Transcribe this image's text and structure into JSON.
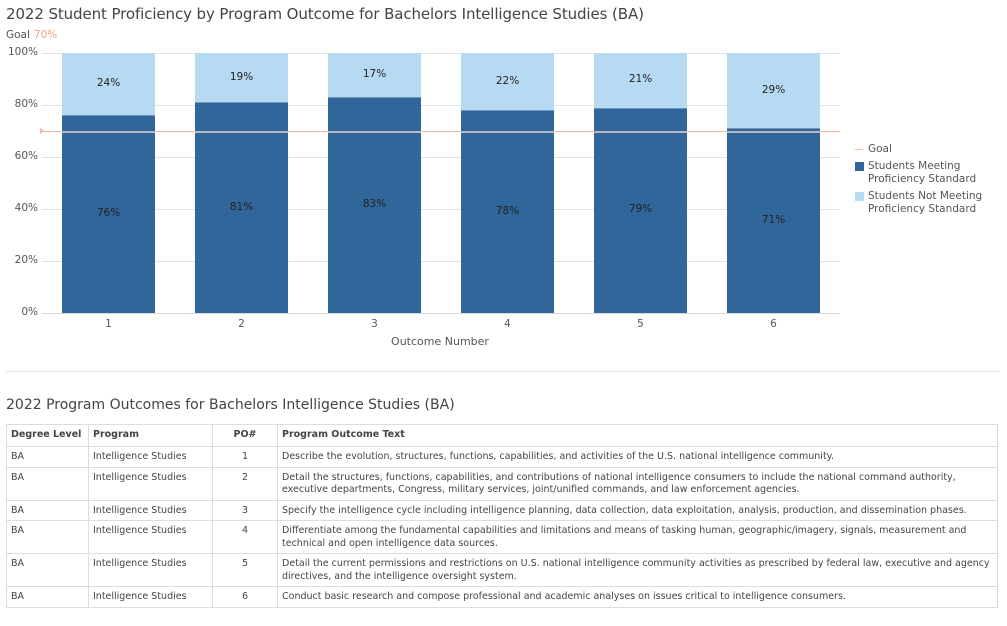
{
  "chart": {
    "title": "2022 Student Proficiency by Program Outcome for Bachelors Intelligence Studies (BA)",
    "goal_label": "Goal",
    "goal_value_label": "70%",
    "y_ticks": [
      "100%",
      "80%",
      "60%",
      "40%",
      "20%",
      "0%"
    ],
    "x_axis_label": "Outcome Number",
    "legend": {
      "goal": "Goal",
      "meeting": "Students Meeting Proficiency Standard",
      "not_meeting": "Students Not Meeting Proficiency Standard"
    },
    "colors": {
      "meeting": "#306699",
      "not_meeting": "#b7daf3",
      "goal": "#f4b7a3"
    }
  },
  "chart_data": {
    "type": "bar",
    "stacked": true,
    "title": "2022 Student Proficiency by Program Outcome for Bachelors Intelligence Studies (BA)",
    "xlabel": "Outcome Number",
    "ylabel": "",
    "ylim": [
      0,
      100
    ],
    "y_format": "percent",
    "categories": [
      "1",
      "2",
      "3",
      "4",
      "5",
      "6"
    ],
    "series": [
      {
        "name": "Students Meeting Proficiency Standard",
        "color": "#306699",
        "values": [
          76,
          81,
          83,
          78,
          79,
          71
        ],
        "labels": [
          "76%",
          "81%",
          "83%",
          "78%",
          "79%",
          "71%"
        ]
      },
      {
        "name": "Students Not Meeting Proficiency Standard",
        "color": "#b7daf3",
        "values": [
          24,
          19,
          17,
          22,
          21,
          29
        ],
        "labels": [
          "24%",
          "19%",
          "17%",
          "22%",
          "21%",
          "29%"
        ]
      }
    ],
    "reference_lines": [
      {
        "name": "Goal",
        "value": 70,
        "color": "#f4b7a3"
      }
    ],
    "grid": true,
    "legend_position": "right"
  },
  "table": {
    "title": "2022 Program Outcomes for Bachelors Intelligence Studies (BA)",
    "headers": [
      "Degree Level",
      "Program",
      "PO#",
      "Program Outcome Text"
    ],
    "rows": [
      [
        "BA",
        "Intelligence Studies",
        "1",
        "Describe the evolution, structures, functions, capabilities, and activities of the U.S. national intelligence community."
      ],
      [
        "BA",
        "Intelligence Studies",
        "2",
        "Detail the structures, functions, capabilities, and contributions of national intelligence consumers to include the national command authority, executive departments, Congress, military services, joint/unified commands, and law enforcement agencies."
      ],
      [
        "BA",
        "Intelligence Studies",
        "3",
        "Specify the intelligence cycle including intelligence planning, data collection, data exploitation, analysis, production, and dissemination phases."
      ],
      [
        "BA",
        "Intelligence Studies",
        "4",
        "Differentiate among the fundamental capabilities and limitations and means of tasking human, geographic/imagery, signals, measurement and technical and open intelligence data sources."
      ],
      [
        "BA",
        "Intelligence Studies",
        "5",
        "Detail the current permissions and restrictions on U.S. national intelligence community activities as prescribed by federal law, executive and agency directives, and the intelligence oversight system."
      ],
      [
        "BA",
        "Intelligence Studies",
        "6",
        "Conduct basic research and compose professional and academic analyses on issues critical to intelligence consumers."
      ]
    ]
  }
}
